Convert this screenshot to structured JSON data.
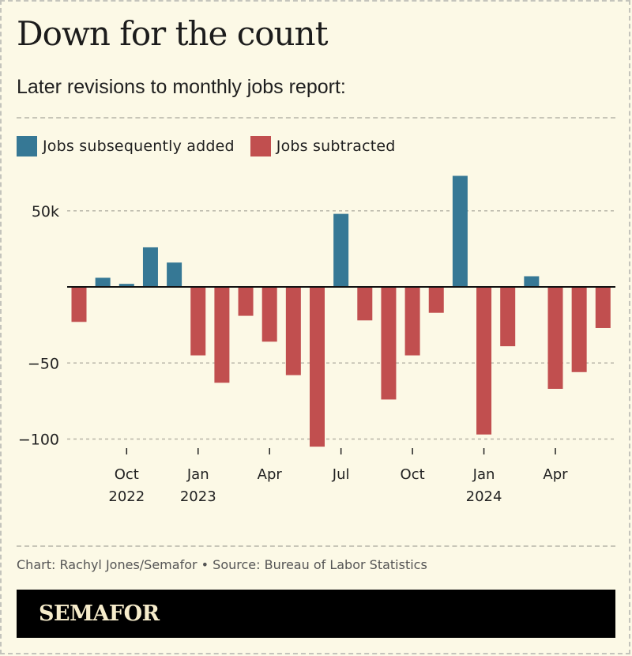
{
  "header": {
    "title": "Down for the count",
    "subtitle": "Later revisions to monthly jobs report:"
  },
  "legend": [
    {
      "label": "Jobs subsequently added",
      "color": "#367895"
    },
    {
      "label": "Jobs subtracted",
      "color": "#c14f4f"
    }
  ],
  "footer": {
    "credit": "Chart: Rachyl Jones/Semafor • Source: Bureau of Labor Statistics",
    "brand": "SEMAFOR"
  },
  "chart_data": {
    "type": "bar",
    "title": "Down for the count",
    "subtitle": "Later revisions to monthly jobs report:",
    "xlabel": "",
    "ylabel": "",
    "unit": "thousands of jobs",
    "ylim": [
      -105,
      75
    ],
    "yticks": [
      {
        "value": 50,
        "label": "50k"
      },
      {
        "value": -50,
        "label": "−50"
      },
      {
        "value": -100,
        "label": "−100"
      }
    ],
    "grid": true,
    "legend_position": "top-left",
    "categories": [
      "Aug 2022",
      "Sep 2022",
      "Oct 2022",
      "Nov 2022",
      "Dec 2022",
      "Jan 2023",
      "Feb 2023",
      "Mar 2023",
      "Apr 2023",
      "May 2023",
      "Jun 2023",
      "Jul 2023",
      "Aug 2023",
      "Sep 2023",
      "Oct 2023",
      "Nov 2023",
      "Dec 2023",
      "Jan 2024",
      "Feb 2024",
      "Mar 2024",
      "Apr 2024",
      "May 2024",
      "Jun 2024"
    ],
    "values": [
      -23,
      6,
      2,
      26,
      16,
      -45,
      -63,
      -19,
      -36,
      -58,
      -105,
      48,
      -22,
      -74,
      -45,
      -17,
      73,
      -97,
      -39,
      7,
      -67,
      -56,
      -27
    ],
    "positive_color": "#367895",
    "negative_color": "#c14f4f",
    "xticks": [
      {
        "index": 2,
        "label": "Oct",
        "sublabel": "2022"
      },
      {
        "index": 5,
        "label": "Jan",
        "sublabel": "2023"
      },
      {
        "index": 8,
        "label": "Apr",
        "sublabel": ""
      },
      {
        "index": 11,
        "label": "Jul",
        "sublabel": ""
      },
      {
        "index": 14,
        "label": "Oct",
        "sublabel": ""
      },
      {
        "index": 17,
        "label": "Jan",
        "sublabel": "2024"
      },
      {
        "index": 20,
        "label": "Apr",
        "sublabel": ""
      }
    ]
  }
}
